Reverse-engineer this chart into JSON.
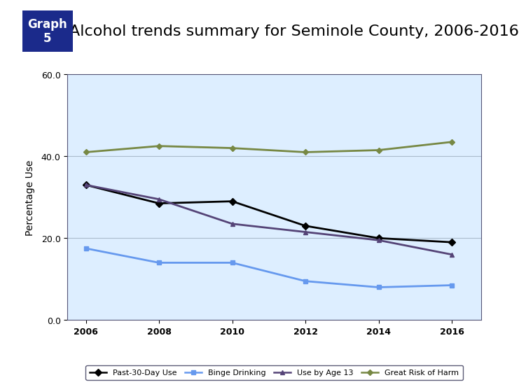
{
  "title": "Alcohol trends summary for Seminole County, 2006-2016",
  "graph_label": "Graph\n5",
  "ylabel": "Percentage Use",
  "years": [
    2006,
    2008,
    2010,
    2012,
    2014,
    2016
  ],
  "series": {
    "Past-30-Day Use": {
      "values": [
        33.0,
        28.5,
        29.0,
        23.0,
        20.0,
        19.0
      ],
      "color": "#000000",
      "marker": "D",
      "markersize": 5,
      "linewidth": 2.0
    },
    "Binge Drinking": {
      "values": [
        17.5,
        14.0,
        14.0,
        9.5,
        8.0,
        8.5
      ],
      "color": "#6699EE",
      "marker": "s",
      "markersize": 5,
      "linewidth": 2.0
    },
    "Use by Age 13": {
      "values": [
        33.0,
        29.5,
        23.5,
        21.5,
        19.5,
        16.0
      ],
      "color": "#554477",
      "marker": "^",
      "markersize": 5,
      "linewidth": 2.0
    },
    "Great Risk of Harm": {
      "values": [
        41.0,
        42.5,
        42.0,
        41.0,
        41.5,
        43.5
      ],
      "color": "#778844",
      "marker": "D",
      "markersize": 4,
      "linewidth": 2.0
    }
  },
  "ylim": [
    0.0,
    60.0
  ],
  "yticks": [
    0.0,
    20.0,
    40.0,
    60.0
  ],
  "ytick_labels": [
    "0.0",
    "20.0",
    "40.0",
    "60.0"
  ],
  "chart_bg_color": "#DDEEFF",
  "plot_bg_color": "#DDEEFF",
  "outer_bg_color": "#FFFFFF",
  "header_bg_color": "#1B2A8B",
  "header_text_color": "#FFFFFF",
  "title_fontsize": 16,
  "ylabel_fontsize": 10,
  "tick_fontsize": 9,
  "legend_fontsize": 8
}
